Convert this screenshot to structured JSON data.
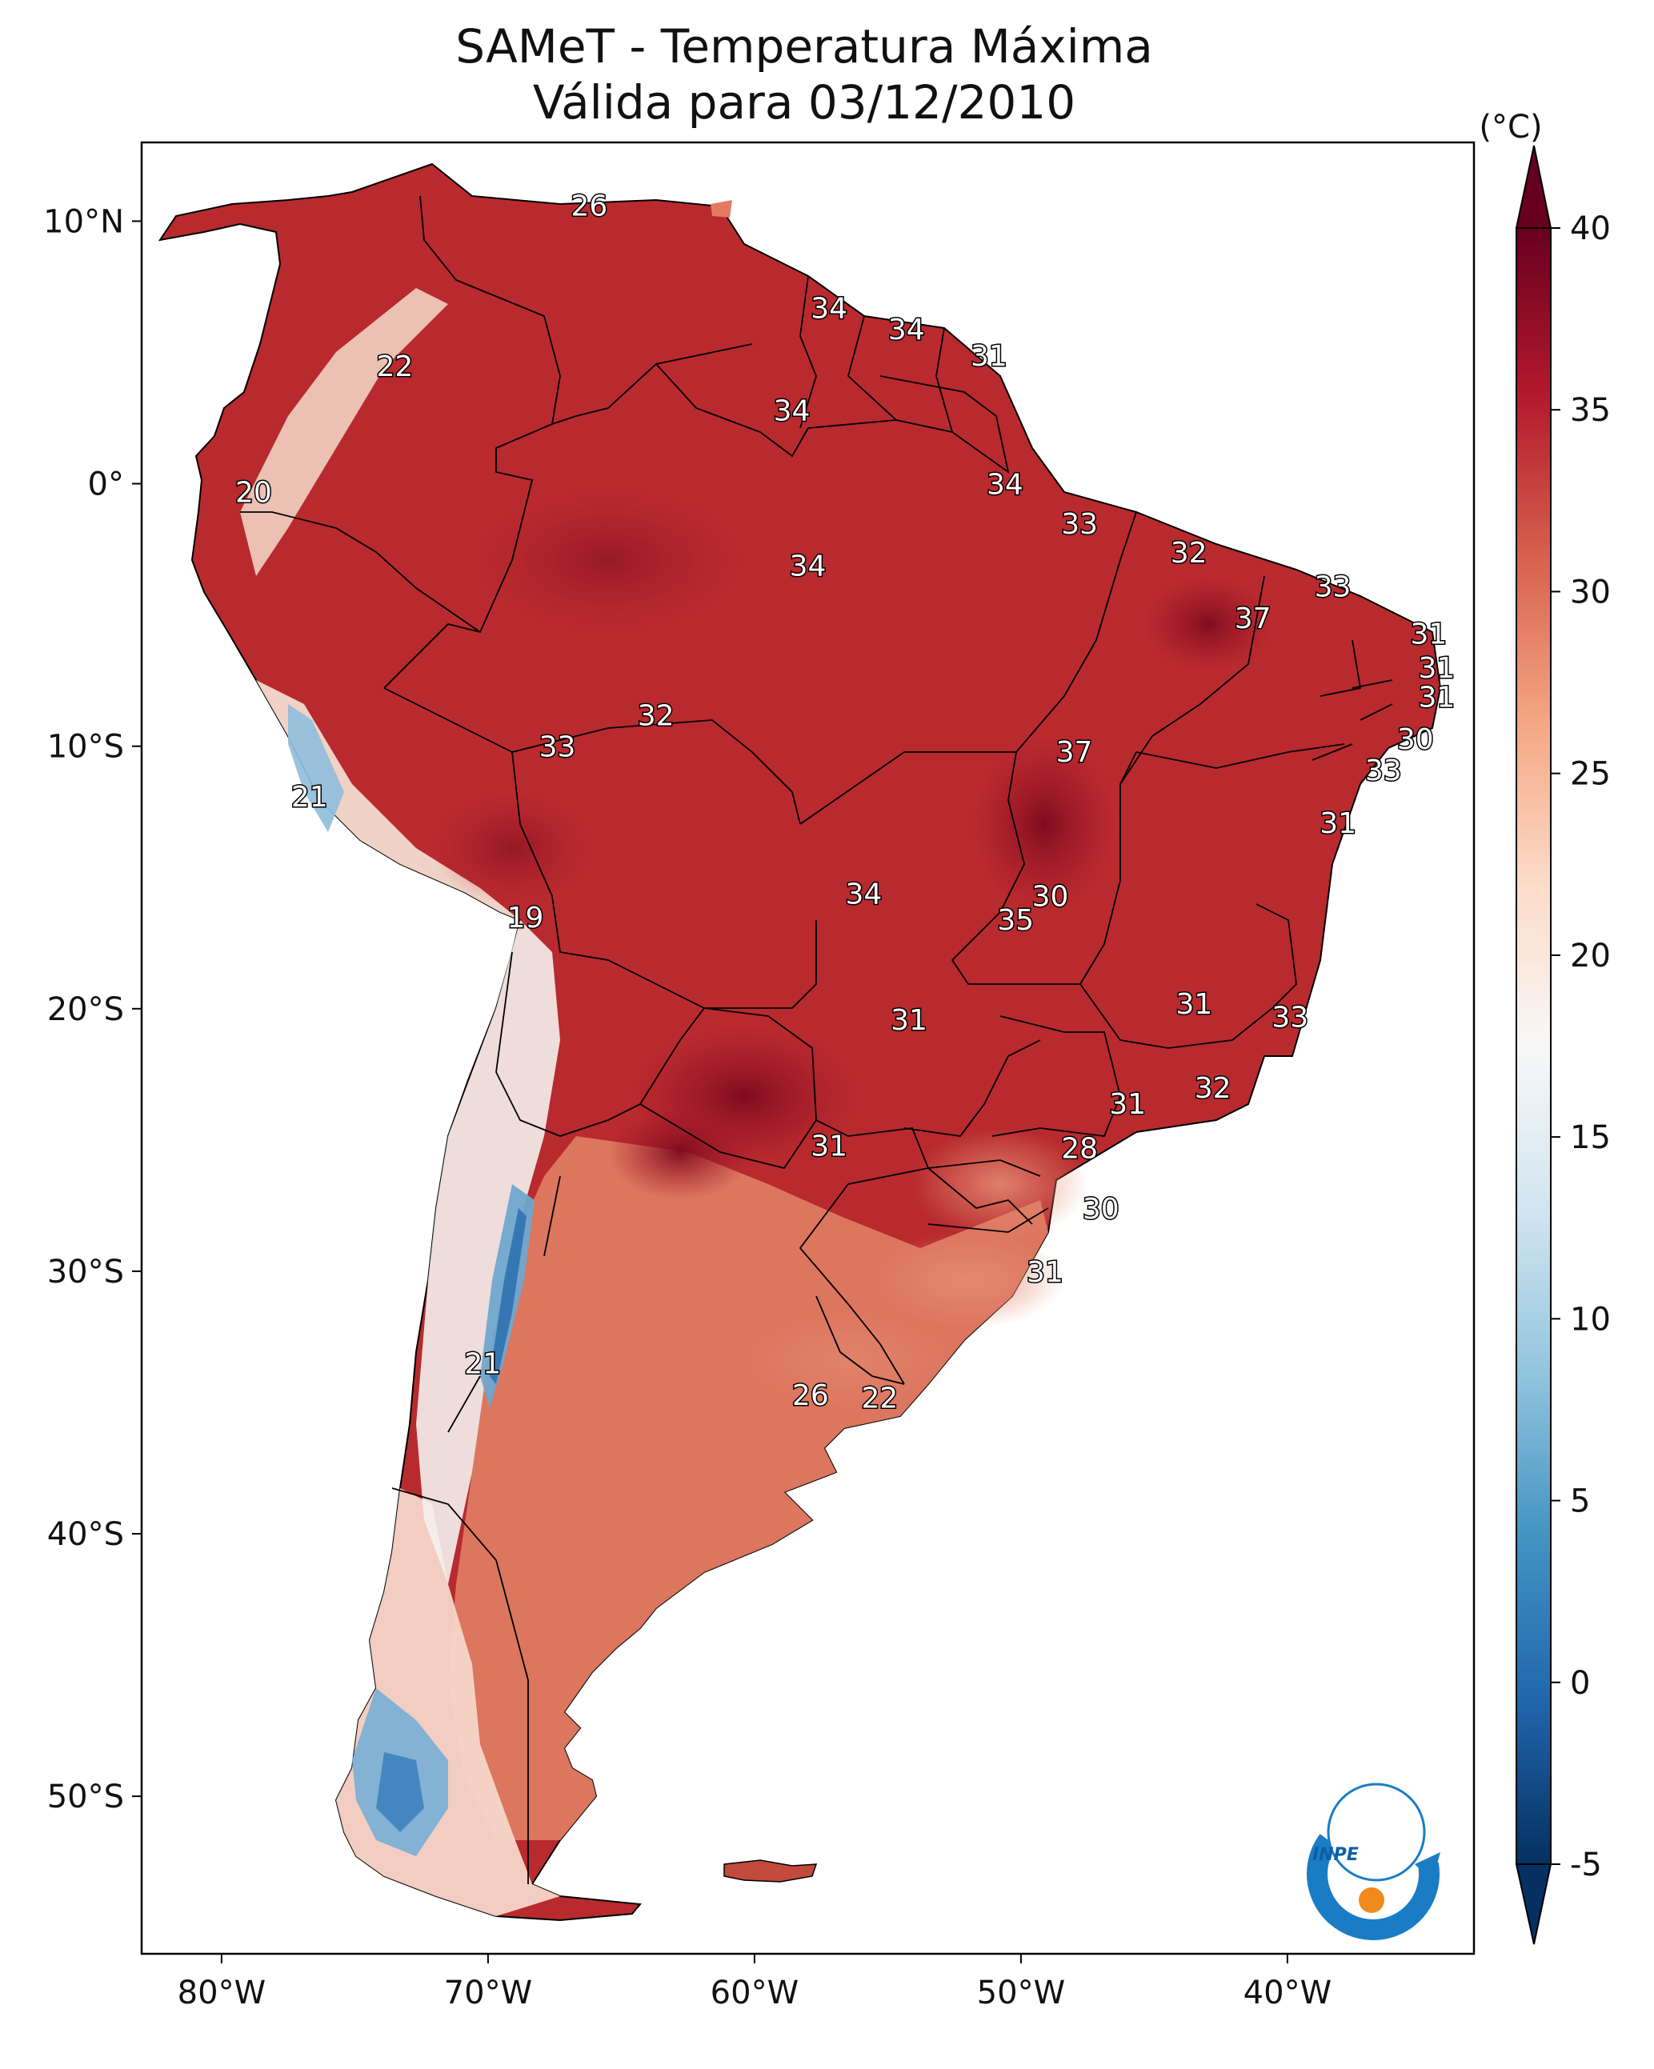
{
  "title": {
    "line1": "SAMeT - Temperatura Máxima",
    "line2": "Válida para 03/12/2010"
  },
  "map": {
    "lon_range": [
      -83,
      -33
    ],
    "lat_range": [
      -56,
      13
    ],
    "lon_ticks": [
      {
        "value": -80,
        "label": "80°W"
      },
      {
        "value": -70,
        "label": "70°W"
      },
      {
        "value": -60,
        "label": "60°W"
      },
      {
        "value": -50,
        "label": "50°W"
      },
      {
        "value": -40,
        "label": "40°W"
      }
    ],
    "lat_ticks": [
      {
        "value": 10,
        "label": "10°N"
      },
      {
        "value": 0,
        "label": "0°"
      },
      {
        "value": -10,
        "label": "10°S"
      },
      {
        "value": -20,
        "label": "20°S"
      },
      {
        "value": -30,
        "label": "30°S"
      },
      {
        "value": -40,
        "label": "40°S"
      },
      {
        "value": -50,
        "label": "50°S"
      }
    ],
    "temperature_labels": [
      {
        "lon": -66.2,
        "lat": 10.6,
        "value": "26"
      },
      {
        "lon": -57.2,
        "lat": 6.7,
        "value": "34"
      },
      {
        "lon": -54.3,
        "lat": 5.9,
        "value": "34"
      },
      {
        "lon": -51.2,
        "lat": 4.9,
        "value": "31"
      },
      {
        "lon": -73.5,
        "lat": 4.5,
        "value": "22"
      },
      {
        "lon": -58.6,
        "lat": 2.8,
        "value": "34"
      },
      {
        "lon": -50.6,
        "lat": 0.0,
        "value": "34"
      },
      {
        "lon": -78.8,
        "lat": -0.3,
        "value": "20"
      },
      {
        "lon": -47.8,
        "lat": -1.5,
        "value": "33"
      },
      {
        "lon": -58.0,
        "lat": -3.1,
        "value": "34"
      },
      {
        "lon": -43.7,
        "lat": -2.6,
        "value": "32"
      },
      {
        "lon": -38.3,
        "lat": -3.9,
        "value": "33"
      },
      {
        "lon": -41.3,
        "lat": -5.1,
        "value": "37"
      },
      {
        "lon": -34.7,
        "lat": -5.7,
        "value": "31"
      },
      {
        "lon": -34.4,
        "lat": -7.0,
        "value": "31"
      },
      {
        "lon": -34.4,
        "lat": -8.1,
        "value": "31"
      },
      {
        "lon": -63.7,
        "lat": -8.8,
        "value": "32"
      },
      {
        "lon": -35.2,
        "lat": -9.7,
        "value": "30"
      },
      {
        "lon": -48.0,
        "lat": -10.2,
        "value": "37"
      },
      {
        "lon": -67.4,
        "lat": -10.0,
        "value": "33"
      },
      {
        "lon": -36.4,
        "lat": -10.9,
        "value": "33"
      },
      {
        "lon": -76.7,
        "lat": -11.9,
        "value": "21"
      },
      {
        "lon": -38.1,
        "lat": -12.9,
        "value": "31"
      },
      {
        "lon": -48.9,
        "lat": -15.7,
        "value": "30"
      },
      {
        "lon": -55.9,
        "lat": -15.6,
        "value": "34"
      },
      {
        "lon": -50.2,
        "lat": -16.6,
        "value": "35"
      },
      {
        "lon": -68.6,
        "lat": -16.5,
        "value": "19"
      },
      {
        "lon": -43.5,
        "lat": -19.8,
        "value": "31"
      },
      {
        "lon": -39.9,
        "lat": -20.3,
        "value": "33"
      },
      {
        "lon": -54.2,
        "lat": -20.4,
        "value": "31"
      },
      {
        "lon": -42.8,
        "lat": -23.0,
        "value": "32"
      },
      {
        "lon": -46.0,
        "lat": -23.6,
        "value": "31"
      },
      {
        "lon": -57.2,
        "lat": -25.2,
        "value": "31"
      },
      {
        "lon": -47.8,
        "lat": -25.3,
        "value": "28"
      },
      {
        "lon": -47.0,
        "lat": -27.6,
        "value": "30"
      },
      {
        "lon": -49.1,
        "lat": -30.0,
        "value": "31"
      },
      {
        "lon": -70.2,
        "lat": -33.5,
        "value": "21"
      },
      {
        "lon": -57.9,
        "lat": -34.7,
        "value": "26"
      },
      {
        "lon": -55.3,
        "lat": -34.8,
        "value": "22"
      }
    ]
  },
  "colorbar": {
    "unit": "(°C)",
    "min": -5,
    "max": 40,
    "ticks": [
      "40",
      "35",
      "30",
      "25",
      "20",
      "15",
      "10",
      "5",
      "0",
      "-5"
    ],
    "colors": [
      "#053061",
      "#2166ac",
      "#4393c3",
      "#92c5de",
      "#d1e5f0",
      "#f7f7f7",
      "#fddbc7",
      "#f4a582",
      "#d6604d",
      "#b2182b",
      "#67001f"
    ]
  },
  "palette": {
    "hot": "#b2182b",
    "very_hot": "#8e0d1f",
    "warm": "#d6604d",
    "mild": "#ea8d72",
    "cool": "#fbe3d6",
    "cold": "#6fa6cf",
    "very_cold": "#2f72b0"
  },
  "logo": {
    "text": "INPE"
  }
}
